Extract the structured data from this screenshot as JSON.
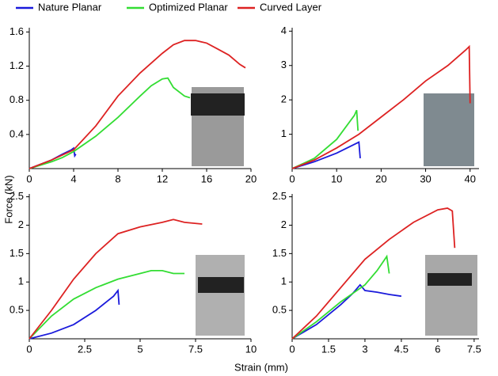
{
  "xlabel": "Strain (mm)",
  "ylabel": "Force (kN)",
  "chart_data": [
    {
      "type": "line",
      "xlim": [
        0,
        20
      ],
      "xticks": [
        0,
        4,
        8,
        12,
        16,
        20
      ],
      "ylim": [
        0,
        1.65
      ],
      "yticks": [
        0.4,
        0.8,
        1.2,
        1.6
      ],
      "series": [
        {
          "name": "Nature Planar",
          "color": "#1a1adb",
          "x": [
            0,
            1,
            2,
            3,
            3.8,
            4,
            4.1,
            4.2
          ],
          "values": [
            0,
            0.05,
            0.1,
            0.17,
            0.22,
            0.24,
            0.15,
            0.17
          ]
        },
        {
          "name": "Optimized Planar",
          "color": "#33dd33",
          "x": [
            0,
            2,
            3,
            4,
            6,
            8,
            10,
            11,
            12,
            12.5,
            13,
            14,
            14.5
          ],
          "values": [
            0,
            0.08,
            0.13,
            0.2,
            0.38,
            0.6,
            0.85,
            0.97,
            1.05,
            1.06,
            0.95,
            0.85,
            0.83
          ]
        },
        {
          "name": "Curved Layer",
          "color": "#dd2222",
          "x": [
            0,
            2,
            4,
            6,
            8,
            10,
            12,
            13,
            14,
            15,
            16,
            17,
            18,
            19,
            19.5
          ],
          "values": [
            0,
            0.1,
            0.22,
            0.5,
            0.85,
            1.12,
            1.35,
            1.45,
            1.5,
            1.5,
            1.47,
            1.4,
            1.33,
            1.22,
            1.18
          ]
        }
      ]
    },
    {
      "type": "line",
      "xlim": [
        0,
        42
      ],
      "xticks": [
        0,
        10,
        20,
        30,
        40
      ],
      "ylim": [
        0,
        4.1
      ],
      "yticks": [
        1,
        2,
        3,
        4
      ],
      "series": [
        {
          "name": "Nature Planar",
          "color": "#1a1adb",
          "x": [
            0,
            5,
            10,
            15,
            15.3
          ],
          "values": [
            0,
            0.2,
            0.45,
            0.77,
            0.3
          ]
        },
        {
          "name": "Optimized Planar",
          "color": "#33dd33",
          "x": [
            0,
            5,
            10,
            14,
            14.5,
            14.8
          ],
          "values": [
            0,
            0.3,
            0.85,
            1.55,
            1.7,
            1.1
          ]
        },
        {
          "name": "Curved Layer",
          "color": "#dd2222",
          "x": [
            0,
            5,
            10,
            15,
            20,
            25,
            30,
            35,
            39,
            39.8,
            40
          ],
          "values": [
            0,
            0.25,
            0.6,
            1.0,
            1.5,
            2.0,
            2.55,
            3.0,
            3.45,
            3.55,
            1.9
          ]
        }
      ]
    },
    {
      "type": "line",
      "xlim": [
        0,
        10
      ],
      "xticks": [
        0,
        2.5,
        5,
        7.5,
        10
      ],
      "ylim": [
        0,
        2.55
      ],
      "yticks": [
        0.5,
        1,
        1.5,
        2,
        2.5
      ],
      "series": [
        {
          "name": "Nature Planar",
          "color": "#1a1adb",
          "x": [
            0,
            1,
            2,
            3,
            3.8,
            4,
            4.05
          ],
          "values": [
            0,
            0.1,
            0.25,
            0.5,
            0.75,
            0.85,
            0.6
          ]
        },
        {
          "name": "Optimized Planar",
          "color": "#33dd33",
          "x": [
            0,
            1,
            2,
            3,
            4,
            5,
            5.5,
            6,
            6.5,
            7
          ],
          "values": [
            0,
            0.4,
            0.7,
            0.9,
            1.05,
            1.15,
            1.2,
            1.2,
            1.15,
            1.15
          ]
        },
        {
          "name": "Curved Layer",
          "color": "#dd2222",
          "x": [
            0,
            1,
            2,
            3,
            4,
            5,
            6,
            6.5,
            7,
            7.8
          ],
          "values": [
            0,
            0.5,
            1.05,
            1.5,
            1.85,
            1.97,
            2.05,
            2.1,
            2.05,
            2.02
          ]
        }
      ]
    },
    {
      "type": "line",
      "xlim": [
        0,
        7.7
      ],
      "xticks": [
        0,
        1.5,
        3,
        4.5,
        6,
        7.5
      ],
      "ylim": [
        0,
        2.55
      ],
      "yticks": [
        0.5,
        1,
        1.5,
        2,
        2.5
      ],
      "series": [
        {
          "name": "Nature Planar",
          "color": "#1a1adb",
          "x": [
            0,
            1,
            2,
            2.5,
            2.8,
            3,
            3.5,
            4,
            4.5
          ],
          "values": [
            0,
            0.25,
            0.6,
            0.8,
            0.95,
            0.85,
            0.82,
            0.78,
            0.75
          ]
        },
        {
          "name": "Optimized Planar",
          "color": "#33dd33",
          "x": [
            0,
            1,
            2,
            3,
            3.5,
            3.9,
            4
          ],
          "values": [
            0,
            0.3,
            0.65,
            0.95,
            1.2,
            1.45,
            1.15
          ]
        },
        {
          "name": "Curved Layer",
          "color": "#dd2222",
          "x": [
            0,
            1,
            2,
            3,
            4,
            5,
            6,
            6.4,
            6.6,
            6.7
          ],
          "values": [
            0,
            0.4,
            0.9,
            1.4,
            1.75,
            2.05,
            2.27,
            2.3,
            2.25,
            1.6
          ]
        }
      ]
    }
  ]
}
